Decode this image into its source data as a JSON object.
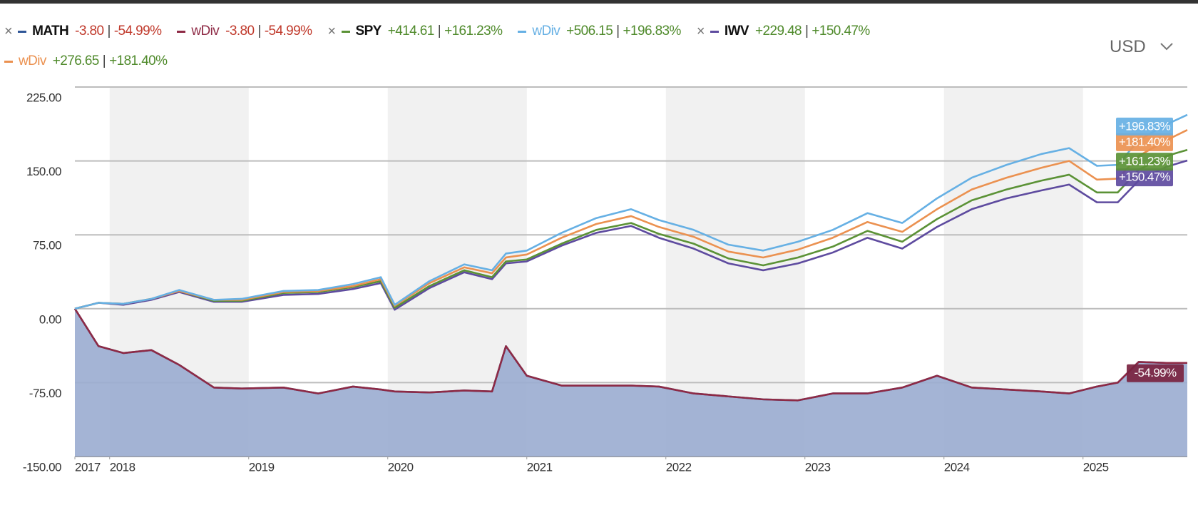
{
  "chart_data": {
    "type": "line",
    "currency": "USD",
    "x": [
      2017.75,
      2017.92,
      2018.1,
      2018.3,
      2018.5,
      2018.75,
      2018.95,
      2019.25,
      2019.5,
      2019.75,
      2019.95,
      2020.05,
      2020.3,
      2020.55,
      2020.75,
      2020.85,
      2021.0,
      2021.25,
      2021.5,
      2021.75,
      2021.95,
      2022.2,
      2022.45,
      2022.7,
      2022.95,
      2023.2,
      2023.45,
      2023.7,
      2023.95,
      2024.2,
      2024.45,
      2024.7,
      2024.9,
      2025.1,
      2025.25,
      2025.4,
      2025.6,
      2025.75
    ],
    "xlim": [
      2017.75,
      2025.75
    ],
    "xticks": [
      {
        "value": 2017.75,
        "label": "2017"
      },
      2018,
      2019,
      2020,
      2021,
      2022,
      2023,
      2024,
      2025
    ],
    "ylim": [
      -150,
      225
    ],
    "yticks": [
      {
        "value": 225,
        "label": "225.00"
      },
      {
        "value": 150,
        "label": "150.00"
      },
      {
        "value": 75,
        "label": "75.00"
      },
      {
        "value": 0,
        "label": "0.00"
      },
      {
        "value": -75,
        "label": "-75.00"
      },
      {
        "value": -150,
        "label": "-150.00"
      }
    ],
    "grid": true,
    "series": [
      {
        "name": "MATH",
        "color": "#2f5597",
        "area_color": "#9aacd0",
        "change": "-3.80",
        "change_pct": "-54.99%",
        "values": [
          0,
          -38,
          -45,
          -42,
          -57,
          -80,
          -81,
          -80,
          -86,
          -79,
          -82,
          -84,
          -85,
          -83,
          -84,
          -38,
          -68,
          -78,
          -78,
          -78,
          -79,
          -86,
          -89,
          -92,
          -93,
          -86,
          -86,
          -80,
          -68,
          -80,
          -82,
          -84,
          -86,
          -79,
          -75,
          -54,
          -55,
          -54.99
        ]
      },
      {
        "name": "wDiv",
        "color": "#8e2a45",
        "change": "-3.80",
        "change_pct": "-54.99%",
        "values": [
          0,
          -38,
          -45,
          -42,
          -57,
          -80,
          -81,
          -80,
          -86,
          -79,
          -82,
          -84,
          -85,
          -83,
          -84,
          -38,
          -68,
          -78,
          -78,
          -78,
          -79,
          -86,
          -89,
          -92,
          -93,
          -86,
          -86,
          -80,
          -68,
          -80,
          -82,
          -84,
          -86,
          -79,
          -75,
          -54,
          -55,
          -54.99
        ]
      },
      {
        "name": "SPY",
        "color": "#5b9236",
        "change": "+414.61",
        "change_pct": "+161.23%",
        "values": [
          0,
          6,
          5,
          10,
          18,
          8,
          8,
          16,
          17,
          22,
          28,
          1,
          23,
          39,
          32,
          48,
          50,
          66,
          80,
          87,
          76,
          66,
          51,
          44,
          52,
          63,
          79,
          68,
          91,
          110,
          121,
          130,
          136,
          118,
          118,
          141,
          155,
          161.23
        ]
      },
      {
        "name": "wDiv",
        "color": "#66b0e4",
        "change": "+506.15",
        "change_pct": "+196.83%",
        "values": [
          0,
          6,
          5,
          10,
          19,
          9,
          10,
          18,
          19,
          25,
          32,
          4,
          28,
          45,
          39,
          56,
          59,
          77,
          92,
          101,
          90,
          80,
          65,
          59,
          68,
          80,
          97,
          87,
          112,
          133,
          146,
          157,
          163,
          145,
          146,
          171,
          187,
          196.83
        ]
      },
      {
        "name": "IWV",
        "color": "#5e4b9f",
        "change": "+229.48",
        "change_pct": "+150.47%",
        "values": [
          0,
          6,
          4,
          9,
          17,
          7,
          7,
          14,
          15,
          20,
          26,
          -1,
          21,
          37,
          30,
          46,
          48,
          64,
          77,
          84,
          72,
          61,
          46,
          39,
          46,
          57,
          72,
          61,
          83,
          101,
          112,
          120,
          126,
          108,
          108,
          130,
          144,
          150.47
        ]
      },
      {
        "name": "wDiv",
        "color": "#eb9150",
        "change": "+276.65",
        "change_pct": "+181.40%",
        "values": [
          0,
          6,
          5,
          10,
          18,
          9,
          9,
          17,
          18,
          23,
          30,
          3,
          26,
          42,
          36,
          52,
          55,
          72,
          86,
          94,
          83,
          73,
          58,
          52,
          60,
          72,
          88,
          78,
          101,
          121,
          133,
          143,
          150,
          131,
          132,
          155,
          171,
          181.4
        ]
      }
    ]
  }
}
